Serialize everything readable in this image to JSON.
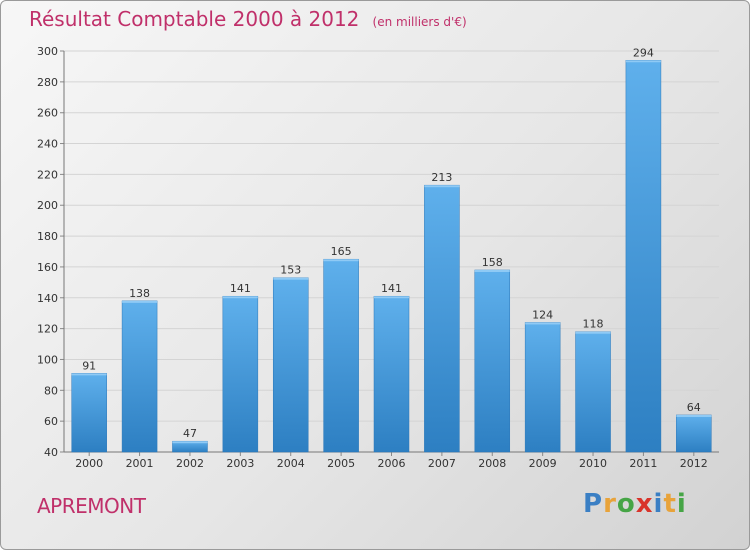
{
  "title": "Résultat Comptable 2000 à 2012",
  "subtitle": "(en milliers d'€)",
  "city": "APREMONT",
  "brand": {
    "letters": [
      "P",
      "r",
      "o",
      "x",
      "i",
      "t",
      "i"
    ],
    "colors": [
      "#3a7fc4",
      "#e8a33a",
      "#46a546",
      "#d9342b",
      "#3a7fc4",
      "#e8a33a",
      "#46a546"
    ]
  },
  "chart_data": {
    "type": "bar",
    "title": "Résultat Comptable 2000 à 2012",
    "xlabel": "",
    "ylabel": "",
    "categories": [
      "2000",
      "2001",
      "2002",
      "2003",
      "2004",
      "2005",
      "2006",
      "2007",
      "2008",
      "2009",
      "2010",
      "2011",
      "2012"
    ],
    "values": [
      91,
      138,
      47,
      141,
      153,
      165,
      141,
      213,
      158,
      124,
      118,
      294,
      64
    ],
    "ylim": [
      40,
      300
    ],
    "yticks": [
      40,
      60,
      80,
      100,
      120,
      140,
      160,
      180,
      200,
      220,
      240,
      260,
      280,
      300
    ],
    "grid": true,
    "bar_color": "#4a9be0"
  }
}
